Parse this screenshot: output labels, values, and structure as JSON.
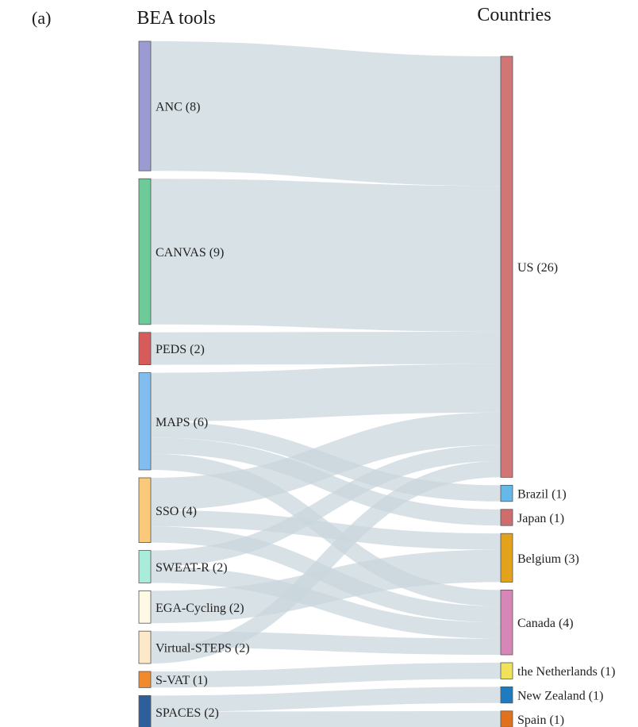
{
  "panel_label": "(a)",
  "chart_data": {
    "type": "sankey",
    "left_header": "BEA tools",
    "right_header": "Countries",
    "sources": [
      {
        "name": "ANC",
        "value": 8,
        "label": "ANC (8)",
        "color": "#9b9bd2"
      },
      {
        "name": "CANVAS",
        "value": 9,
        "label": "CANVAS (9)",
        "color": "#6ccb98"
      },
      {
        "name": "PEDS",
        "value": 2,
        "label": "PEDS (2)",
        "color": "#d85b5b"
      },
      {
        "name": "MAPS",
        "value": 6,
        "label": "MAPS (6)",
        "color": "#82bdf0"
      },
      {
        "name": "SSO",
        "value": 4,
        "label": "SSO (4)",
        "color": "#fbc97a"
      },
      {
        "name": "SWEAT-R",
        "value": 2,
        "label": "SWEAT-R (2)",
        "color": "#a8ecd9"
      },
      {
        "name": "EGA-Cycling",
        "value": 2,
        "label": "EGA-Cycling (2)",
        "color": "#fdf9e4"
      },
      {
        "name": "Virtual-STEPS",
        "value": 2,
        "label": "Virtual-STEPS (2)",
        "color": "#fde8c8"
      },
      {
        "name": "S-VAT",
        "value": 1,
        "label": "S-VAT (1)",
        "color": "#f08a2d"
      },
      {
        "name": "SPACES",
        "value": 2,
        "label": "SPACES (2)",
        "color": "#2f5f9a"
      }
    ],
    "targets": [
      {
        "name": "US",
        "value": 26,
        "label": "US (26)",
        "color": "#d27575"
      },
      {
        "name": "Brazil",
        "value": 1,
        "label": "Brazil (1)",
        "color": "#66b8e8"
      },
      {
        "name": "Japan",
        "value": 1,
        "label": "Japan (1)",
        "color": "#cf6d6d"
      },
      {
        "name": "Belgium",
        "value": 3,
        "label": "Belgium (3)",
        "color": "#e2a21c"
      },
      {
        "name": "Canada",
        "value": 4,
        "label": "Canada (4)",
        "color": "#d687b8"
      },
      {
        "name": "the Netherlands",
        "value": 1,
        "label": "the Netherlands (1)",
        "color": "#f0e25a"
      },
      {
        "name": "New Zealand",
        "value": 1,
        "label": "New Zealand (1)",
        "color": "#1f7bbf"
      },
      {
        "name": "Spain",
        "value": 1,
        "label": "Spain (1)",
        "color": "#e0721e"
      }
    ],
    "links": [
      {
        "source": "ANC",
        "target": "US",
        "value": 8
      },
      {
        "source": "CANVAS",
        "target": "US",
        "value": 9
      },
      {
        "source": "PEDS",
        "target": "US",
        "value": 2
      },
      {
        "source": "MAPS",
        "target": "US",
        "value": 3
      },
      {
        "source": "MAPS",
        "target": "Brazil",
        "value": 1
      },
      {
        "source": "MAPS",
        "target": "Japan",
        "value": 1
      },
      {
        "source": "MAPS",
        "target": "Canada",
        "value": 1
      },
      {
        "source": "SSO",
        "target": "US",
        "value": 2
      },
      {
        "source": "SSO",
        "target": "Belgium",
        "value": 1
      },
      {
        "source": "SSO",
        "target": "Canada",
        "value": 1
      },
      {
        "source": "SWEAT-R",
        "target": "US",
        "value": 1
      },
      {
        "source": "SWEAT-R",
        "target": "Canada",
        "value": 1
      },
      {
        "source": "EGA-Cycling",
        "target": "Belgium",
        "value": 2
      },
      {
        "source": "Virtual-STEPS",
        "target": "Canada",
        "value": 1
      },
      {
        "source": "Virtual-STEPS",
        "target": "US",
        "value": 1
      },
      {
        "source": "S-VAT",
        "target": "the Netherlands",
        "value": 1
      },
      {
        "source": "SPACES",
        "target": "New Zealand",
        "value": 1
      },
      {
        "source": "SPACES",
        "target": "Spain",
        "value": 1
      }
    ]
  }
}
